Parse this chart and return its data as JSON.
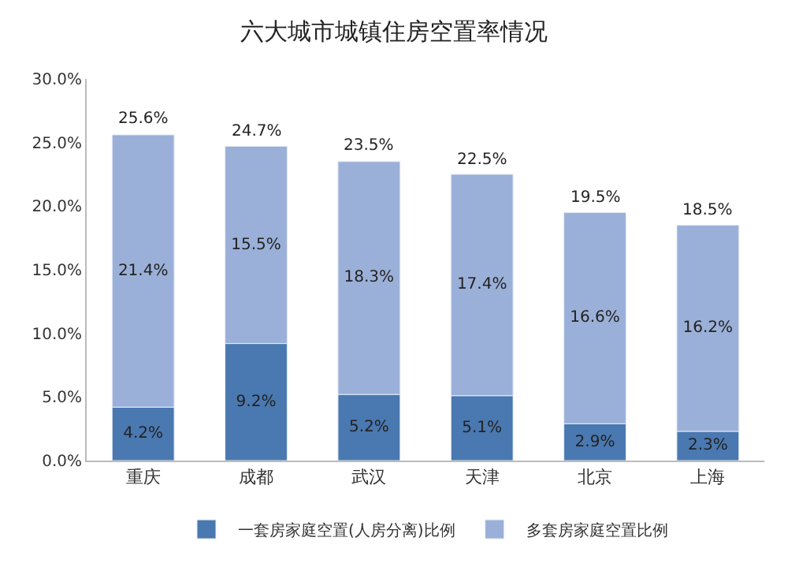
{
  "chart_data": {
    "type": "bar",
    "title": "六大城市城镇住房空置率情况",
    "stacked": true,
    "categories": [
      "重庆",
      "成都",
      "武汉",
      "天津",
      "北京",
      "上海"
    ],
    "series": [
      {
        "name": "一套房家庭空置(人房分离)比例",
        "color": "#4a78b0",
        "values": [
          4.2,
          9.2,
          5.2,
          5.1,
          2.9,
          2.3
        ],
        "value_labels": [
          "4.2%",
          "9.2%",
          "5.2%",
          "5.1%",
          "2.9%",
          "2.3%"
        ]
      },
      {
        "name": "多套房家庭空置比例",
        "color": "#9bb0d8",
        "values": [
          21.4,
          15.5,
          18.3,
          17.4,
          16.6,
          16.2
        ],
        "value_labels": [
          "21.4%",
          "15.5%",
          "18.3%",
          "17.4%",
          "16.6%",
          "16.2%"
        ]
      }
    ],
    "totals": [
      "25.6%",
      "24.7%",
      "23.5%",
      "22.5%",
      "19.5%",
      "18.5%"
    ],
    "ylim": [
      0,
      30
    ],
    "yticks": [
      {
        "value": 0,
        "label": "0.0%"
      },
      {
        "value": 5,
        "label": "5.0%"
      },
      {
        "value": 10,
        "label": "10.0%"
      },
      {
        "value": 15,
        "label": "15.0%"
      },
      {
        "value": 20,
        "label": "20.0%"
      },
      {
        "value": 25,
        "label": "25.0%"
      },
      {
        "value": 30,
        "label": "30.0%"
      }
    ],
    "legend": "bottom"
  }
}
